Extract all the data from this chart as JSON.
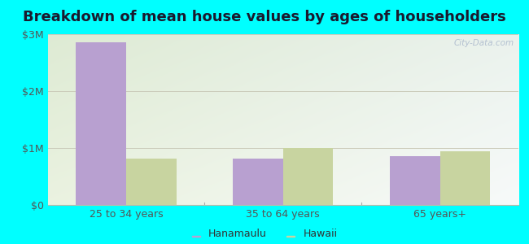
{
  "title": "Breakdown of mean house values by ages of householders",
  "categories": [
    "25 to 34 years",
    "35 to 64 years",
    "65 years+"
  ],
  "hanamaulu_values": [
    2850000,
    820000,
    860000
  ],
  "hawaii_values": [
    810000,
    1000000,
    940000
  ],
  "hanamaulu_color": "#b8a0d0",
  "hawaii_color": "#c8d4a0",
  "ylim": [
    0,
    3000000
  ],
  "yticks": [
    0,
    1000000,
    2000000,
    3000000
  ],
  "ytick_labels": [
    "$0",
    "$1M",
    "$2M",
    "$3M"
  ],
  "outer_background": "#00ffff",
  "legend_hanamaulu": "Hanamaulu",
  "legend_hawaii": "Hawaii",
  "watermark": "City-Data.com",
  "bar_width": 0.32,
  "title_fontsize": 13,
  "tick_fontsize": 9,
  "legend_fontsize": 9
}
